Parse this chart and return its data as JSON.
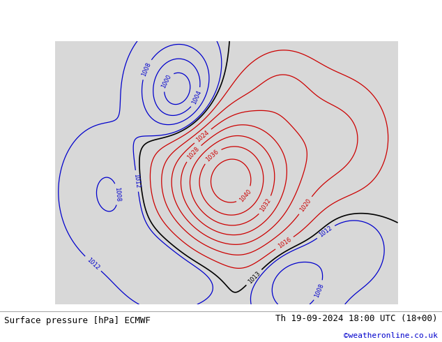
{
  "title_left": "Surface pressure [hPa] ECMWF",
  "title_right": "Th 19-09-2024 18:00 UTC (18+00)",
  "credit": "©weatheronline.co.uk",
  "bg_ocean_color": "#d8d8d8",
  "land_color": "#c8e8b0",
  "coast_color": "#888888",
  "contour_low_color": "#0000cc",
  "contour_high_color": "#cc0000",
  "contour_black_color": "#000000",
  "label_fontsize": 6,
  "footer_fontsize": 9,
  "credit_fontsize": 8,
  "credit_color": "#0000cc",
  "lon_min": -58,
  "lon_max": 52,
  "lat_min": 27,
  "lat_max": 76
}
